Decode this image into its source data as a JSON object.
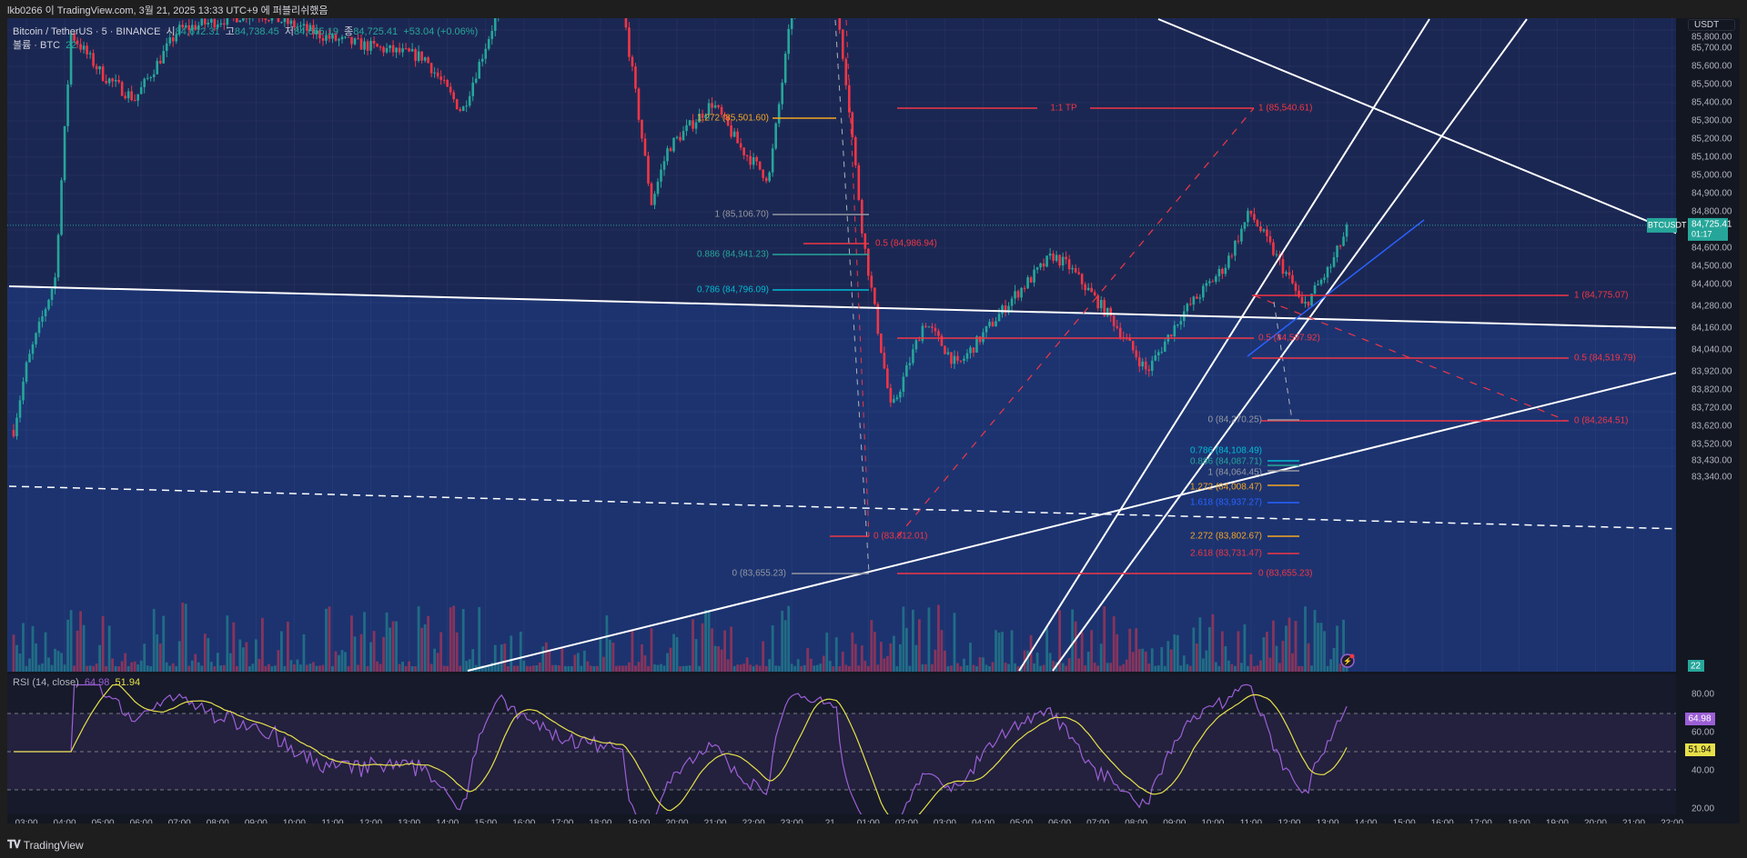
{
  "publisher_text": "lkb0266 이 TradingView.com, 3월 21, 2025 13:33 UTC+9 에 퍼블리쉬했음",
  "legend": {
    "symbol": "Bitcoin / TetherUS · 5 · BINANCE",
    "open_label": "시",
    "open": "84,672.31",
    "high_label": "고",
    "high": "84,738.45",
    "low_label": "저",
    "low": "84,665.19",
    "close_label": "종",
    "close": "84,725.41",
    "change": "+53.04 (+0.06%)",
    "volume_label": "볼륨 · BTC",
    "volume": "22"
  },
  "price_axis": {
    "currency_button": "USDT",
    "ticks": [
      "85,800.00",
      "85,700.00",
      "85,600.00",
      "85,500.00",
      "85,400.00",
      "85,300.00",
      "85,200.00",
      "85,100.00",
      "85,000.00",
      "84,900.00",
      "84,800.00",
      "84,600.00",
      "84,500.00",
      "84,400.00",
      "84,280.00",
      "84,160.00",
      "84,040.00",
      "83,920.00",
      "83,820.00",
      "83,720.00",
      "83,620.00",
      "83,520.00",
      "83,430.00",
      "83,340.00"
    ],
    "symbol_tag": "BTCUSDT",
    "last_price": "84,725.41",
    "countdown": "01:17",
    "volume_tag": "22"
  },
  "rsi": {
    "label": "RSI (14, close)",
    "value": "64.98",
    "ma_value": "51.94",
    "ticks": [
      "80.00",
      "60.00",
      "40.00",
      "20.00"
    ],
    "colors": {
      "rsi": "#9c5fd6",
      "ma": "#e6e04a"
    }
  },
  "time_axis": [
    "03:00",
    "04:00",
    "05:00",
    "06:00",
    "07:00",
    "08:00",
    "09:00",
    "10:00",
    "11:00",
    "12:00",
    "13:00",
    "14:00",
    "15:00",
    "16:00",
    "17:00",
    "18:00",
    "19:00",
    "20:00",
    "21:00",
    "22:00",
    "23:00",
    "21",
    "01:00",
    "02:00",
    "03:00",
    "04:00",
    "05:00",
    "06:00",
    "07:00",
    "08:00",
    "09:00",
    "10:00",
    "11:00",
    "12:00",
    "13:00",
    "14:00",
    "15:00",
    "16:00",
    "17:00",
    "18:00",
    "19:00",
    "20:00",
    "21:00",
    "22:00"
  ],
  "fib_labels": {
    "a_1272": "1.272 (85,501.60)",
    "a_1": "1 (85,106.70)",
    "a_05": "0.5 (84,986.94)",
    "a_0886": "0.886 (84,941.23)",
    "a_0786": "0.786 (84,796.09)",
    "a_0_red": "0 (83,812.01)",
    "a_0_gray": "0 (83,655.23)",
    "tp_label": "1:1 TP",
    "tp_1": "1 (85,540.61)",
    "tp_05": "0.5 (84,597.92)",
    "tp_0": "0 (83,655.23)",
    "b_1": "1 (84,775.07)",
    "b_05": "0.5 (84,519.79)",
    "b_0": "0 (84,264.51)",
    "b_0_gray": "0 (84,270.25)",
    "c_0786": "0.786 (84,108.49)",
    "c_0886": "0.886 (84,087.71)",
    "c_1": "1 (84,064.45)",
    "c_1272": "1.272 (84,008.47)",
    "c_1618": "1.618 (83,937.27)",
    "c_2272": "2.272 (83,802.67)",
    "c_2618": "2.618 (83,731.47)"
  },
  "colors": {
    "up": "#26a69a",
    "down": "#f23645",
    "pane": "#1b2753",
    "zone": "#1c3370",
    "fib_red": "#f23645",
    "fib_orange": "#f5a623",
    "fib_gray": "#9598a1",
    "fib_teal": "#26a69a",
    "fib_cyan": "#00bcd4",
    "fib_blue": "#2962ff"
  },
  "price_path": [
    [
      "20 02:40",
      83600
    ],
    [
      "20 03:00",
      83950
    ],
    [
      "20 03:45",
      84435
    ],
    [
      "20 04:10",
      85780
    ],
    [
      "20 05:00",
      85550
    ],
    [
      "20 05:50",
      85420
    ],
    [
      "20 06:58",
      85800
    ],
    [
      "20 09:00",
      85900
    ],
    [
      "20 11:00",
      85750
    ],
    [
      "20 13:24",
      85650
    ],
    [
      "20 14:23",
      85350
    ],
    [
      "20 15:24",
      85950
    ],
    [
      "20 18:36",
      85900
    ],
    [
      "20 19:20",
      84850
    ],
    [
      "20 19:46",
      85150
    ],
    [
      "20 20:56",
      85400
    ],
    [
      "20 21:40",
      85150
    ],
    [
      "20 22:24",
      84980
    ],
    [
      "20 23:00",
      85900
    ],
    [
      "21 00:08",
      86000
    ],
    [
      "21 00:26",
      85500
    ],
    [
      "21 00:52",
      84650
    ],
    [
      "21 01:36",
      83700
    ],
    [
      "21 02:28",
      84200
    ],
    [
      "21 03:20",
      83950
    ],
    [
      "21 04:47",
      84330
    ],
    [
      "21 05:49",
      84560
    ],
    [
      "21 06:14",
      84500
    ],
    [
      "21 07:24",
      84200
    ],
    [
      "21 08:17",
      83920
    ],
    [
      "21 09:10",
      84230
    ],
    [
      "21 10:19",
      84500
    ],
    [
      "21 10:58",
      84800
    ],
    [
      "21 12:05",
      84400
    ],
    [
      "21 12:21",
      84270
    ],
    [
      "21 13:05",
      84500
    ],
    [
      "21 13:33",
      84725
    ]
  ],
  "brand": "TradingView"
}
